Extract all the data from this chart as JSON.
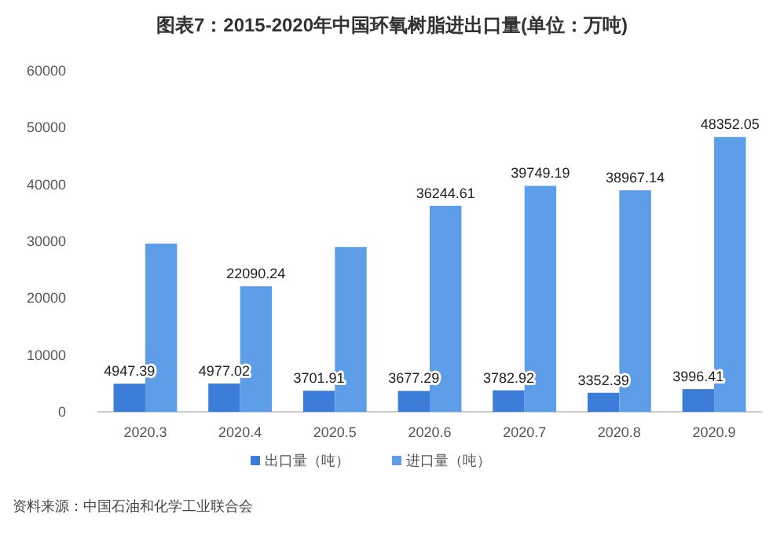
{
  "chart_data": {
    "type": "bar",
    "title": "图表7：2015-2020年中国环氧树脂进出口量(单位：万吨)",
    "categories": [
      "2020.3",
      "2020.4",
      "2020.5",
      "2020.6",
      "2020.7",
      "2020.8",
      "2020.9"
    ],
    "series": [
      {
        "name": "出口量（吨）",
        "color": "#3b7dd8",
        "values": [
          4947.39,
          4977.02,
          3701.91,
          3677.29,
          3782.92,
          3352.39,
          3996.41
        ],
        "value_labels": [
          "4947.39",
          "4977.02",
          "3701.91",
          "3677.29",
          "3782.92",
          "3352.39",
          "3996.41"
        ]
      },
      {
        "name": "进口量（吨）",
        "color": "#5e9ee8",
        "values": [
          29600,
          22090.24,
          29000,
          36244.61,
          39749.19,
          38967.14,
          48352.05
        ],
        "value_labels": [
          null,
          "22090.24",
          null,
          "36244.61",
          "39749.19",
          "38967.14",
          "48352.05"
        ]
      }
    ],
    "ylim": [
      0,
      60000
    ],
    "yticks": [
      0,
      10000,
      20000,
      30000,
      40000,
      50000,
      60000
    ],
    "legend": "bottom",
    "annotations": [
      "资料来源：中国石油和化学工业联合会"
    ]
  }
}
